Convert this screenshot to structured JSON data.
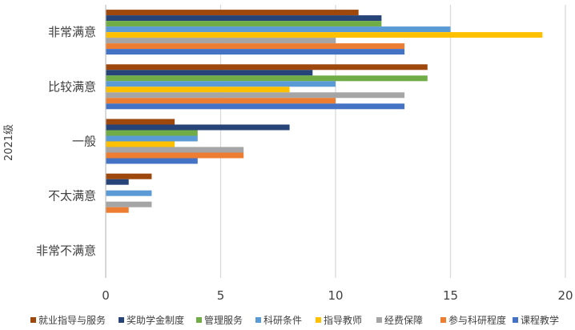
{
  "chart_data": {
    "type": "bar",
    "orientation": "horizontal",
    "ylabel": "2021级",
    "xlim": [
      0,
      20
    ],
    "xticks": [
      0,
      5,
      10,
      15,
      20
    ],
    "grid": true,
    "legend_position": "bottom",
    "categories": [
      "非常不满意",
      "不太满意",
      "一般",
      "比较满意",
      "非常满意"
    ],
    "series": [
      {
        "name": "就业指导与服务",
        "color": "#9E480E",
        "values": [
          0,
          2,
          3,
          14,
          11
        ]
      },
      {
        "name": "奖助学金制度",
        "color": "#264478",
        "values": [
          0,
          1,
          8,
          9,
          12
        ]
      },
      {
        "name": "管理服务",
        "color": "#70AD47",
        "values": [
          0,
          0,
          4,
          14,
          12
        ]
      },
      {
        "name": "科研条件",
        "color": "#5B9BD5",
        "values": [
          0,
          2,
          4,
          10,
          15
        ]
      },
      {
        "name": "指导教师",
        "color": "#FFC000",
        "values": [
          0,
          0,
          3,
          8,
          19
        ]
      },
      {
        "name": "经费保障",
        "color": "#A5A5A5",
        "values": [
          0,
          2,
          6,
          13,
          10
        ]
      },
      {
        "name": "参与科研程度",
        "color": "#ED7D31",
        "values": [
          0,
          1,
          6,
          10,
          13
        ]
      },
      {
        "name": "课程教学",
        "color": "#4472C4",
        "values": [
          0,
          0,
          4,
          13,
          13
        ]
      }
    ]
  }
}
